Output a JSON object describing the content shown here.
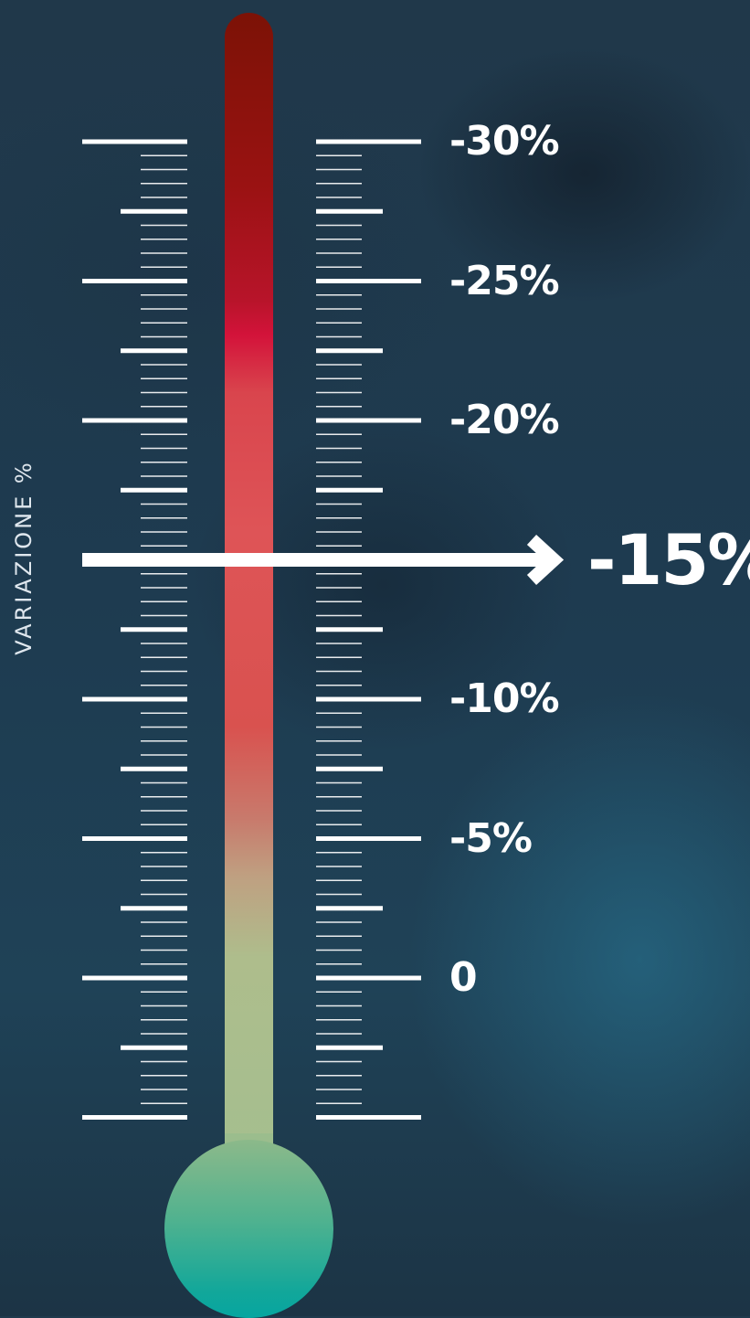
{
  "axis_title": "VARIAZIONE %",
  "scale_labels": [
    {
      "value": -30,
      "text": "-30%"
    },
    {
      "value": -25,
      "text": "-25%"
    },
    {
      "value": -20,
      "text": "-20%"
    },
    {
      "value": -10,
      "text": "-10%"
    },
    {
      "value": -5,
      "text": "-5%"
    },
    {
      "value": 0,
      "text": "0"
    }
  ],
  "pointer": {
    "value": -15,
    "text": "-15%"
  },
  "colors": {
    "top": "#7c1206",
    "hot": "#d3133a",
    "mid": "#de5457",
    "neutral": "#a4bf8f",
    "bulb": "#07a6a0",
    "marks": "#ffffff"
  }
}
